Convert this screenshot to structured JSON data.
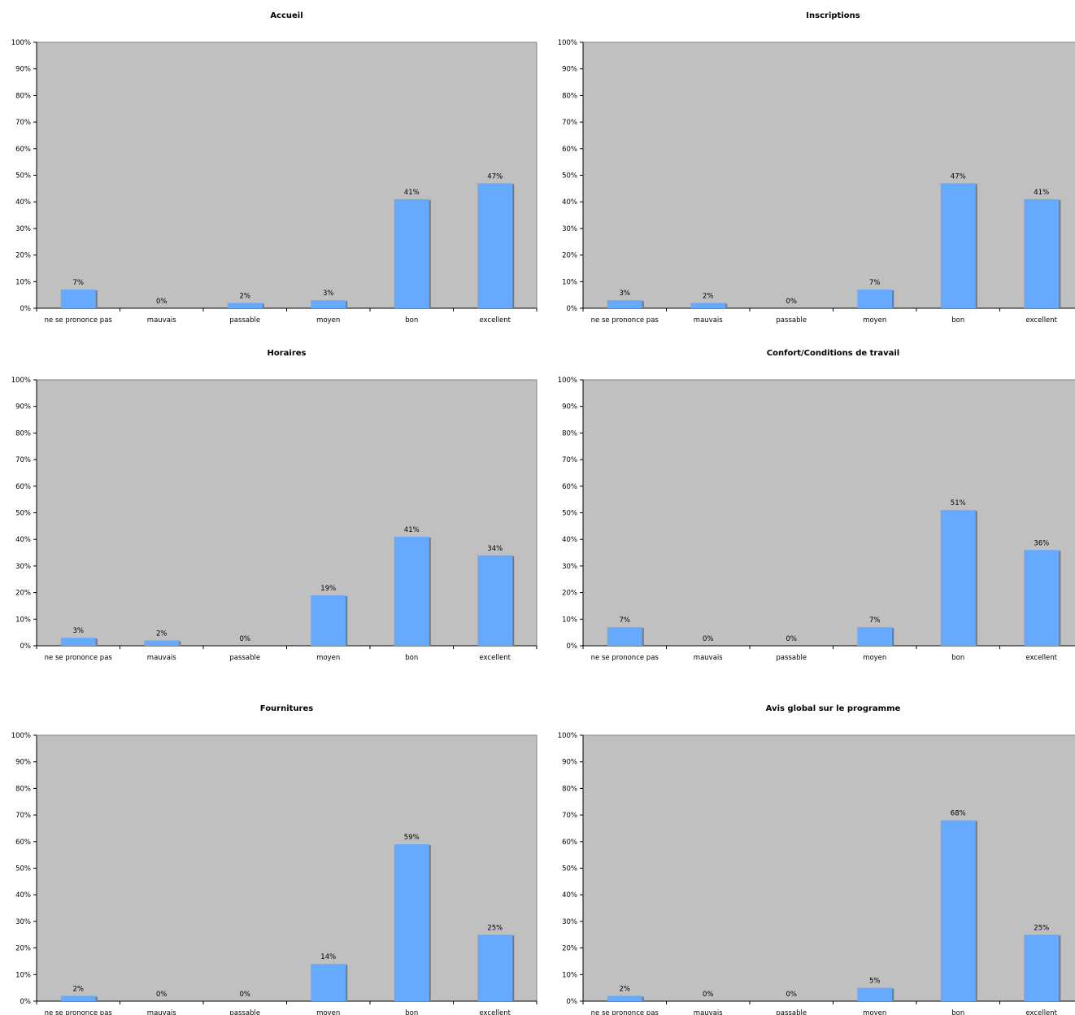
{
  "colors": {
    "plot_background": "#c0c0c0",
    "bar": "#66aaff",
    "bar_shadow": "#777777",
    "axis": "#000000"
  },
  "chart_data": [
    {
      "type": "bar",
      "title": "Accueil",
      "categories": [
        "ne se prononce pas",
        "mauvais",
        "passable",
        "moyen",
        "bon",
        "excellent"
      ],
      "values": [
        7,
        0,
        2,
        3,
        41,
        47
      ],
      "value_labels": [
        "7%",
        "0%",
        "2%",
        "3%",
        "41%",
        "47%"
      ],
      "ylim": [
        0,
        100
      ],
      "yticks": [
        "0%",
        "10%",
        "20%",
        "30%",
        "40%",
        "50%",
        "60%",
        "70%",
        "80%",
        "90%",
        "100%"
      ],
      "grid": false
    },
    {
      "type": "bar",
      "title": "Inscriptions",
      "categories": [
        "ne se prononce pas",
        "mauvais",
        "passable",
        "moyen",
        "bon",
        "excellent"
      ],
      "values": [
        3,
        2,
        0,
        7,
        47,
        41
      ],
      "value_labels": [
        "3%",
        "2%",
        "0%",
        "7%",
        "47%",
        "41%"
      ],
      "ylim": [
        0,
        100
      ],
      "yticks": [
        "0%",
        "10%",
        "20%",
        "30%",
        "40%",
        "50%",
        "60%",
        "70%",
        "80%",
        "90%",
        "100%"
      ],
      "grid": false
    },
    {
      "type": "bar",
      "title": "Horaires",
      "categories": [
        "ne se prononce pas",
        "mauvais",
        "passable",
        "moyen",
        "bon",
        "excellent"
      ],
      "values": [
        3,
        2,
        0,
        19,
        41,
        34
      ],
      "value_labels": [
        "3%",
        "2%",
        "0%",
        "19%",
        "41%",
        "34%"
      ],
      "ylim": [
        0,
        100
      ],
      "yticks": [
        "0%",
        "10%",
        "20%",
        "30%",
        "40%",
        "50%",
        "60%",
        "70%",
        "80%",
        "90%",
        "100%"
      ],
      "grid": false
    },
    {
      "type": "bar",
      "title": "Confort/Conditions de travail",
      "categories": [
        "ne se prononce pas",
        "mauvais",
        "passable",
        "moyen",
        "bon",
        "excellent"
      ],
      "values": [
        7,
        0,
        0,
        7,
        51,
        36
      ],
      "value_labels": [
        "7%",
        "0%",
        "0%",
        "7%",
        "51%",
        "36%"
      ],
      "ylim": [
        0,
        100
      ],
      "yticks": [
        "0%",
        "10%",
        "20%",
        "30%",
        "40%",
        "50%",
        "60%",
        "70%",
        "80%",
        "90%",
        "100%"
      ],
      "grid": false
    },
    {
      "type": "bar",
      "title": "Fournitures",
      "categories": [
        "ne se prononce pas",
        "mauvais",
        "passable",
        "moyen",
        "bon",
        "excellent"
      ],
      "values": [
        2,
        0,
        0,
        14,
        59,
        25
      ],
      "value_labels": [
        "2%",
        "0%",
        "0%",
        "14%",
        "59%",
        "25%"
      ],
      "ylim": [
        0,
        100
      ],
      "yticks": [
        "0%",
        "10%",
        "20%",
        "30%",
        "40%",
        "50%",
        "60%",
        "70%",
        "80%",
        "90%",
        "100%"
      ],
      "grid": false
    },
    {
      "type": "bar",
      "title": "Avis global sur le programme",
      "categories": [
        "ne se prononce pas",
        "mauvais",
        "passable",
        "moyen",
        "bon",
        "excellent"
      ],
      "values": [
        2,
        0,
        0,
        5,
        68,
        25
      ],
      "value_labels": [
        "2%",
        "0%",
        "0%",
        "5%",
        "68%",
        "25%"
      ],
      "ylim": [
        0,
        100
      ],
      "yticks": [
        "0%",
        "10%",
        "20%",
        "30%",
        "40%",
        "50%",
        "60%",
        "70%",
        "80%",
        "90%",
        "100%"
      ],
      "grid": false
    }
  ]
}
